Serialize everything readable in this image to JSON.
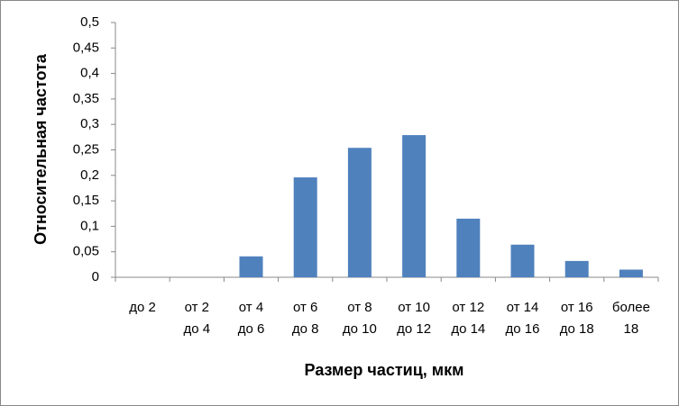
{
  "chart_data": {
    "type": "bar",
    "x_label": "Размер частиц, мкм",
    "y_label": "Относительная частота",
    "categories": [
      [
        "до 2"
      ],
      [
        "от 2",
        "до 4"
      ],
      [
        "от 4",
        "до 6"
      ],
      [
        "от 6",
        "до 8"
      ],
      [
        "от 8",
        "до 10"
      ],
      [
        "от 10",
        "до 12"
      ],
      [
        "от 12",
        "до 14"
      ],
      [
        "от 14",
        "до 16"
      ],
      [
        "от 16",
        "до 18"
      ],
      [
        "более",
        "18"
      ]
    ],
    "values": [
      0,
      0,
      0.041,
      0.196,
      0.254,
      0.279,
      0.115,
      0.064,
      0.032,
      0.015
    ],
    "color": "#4f81bd",
    "ylim": [
      0,
      0.5
    ],
    "yticks": [
      0,
      {
        "value": 0.05,
        "label": "0,05"
      },
      {
        "value": 0.1,
        "label": "0,1"
      },
      {
        "value": 0.15,
        "label": "0,15"
      },
      {
        "value": 0.2,
        "label": "0,2"
      },
      {
        "value": 0.25,
        "label": "0,25"
      },
      {
        "value": 0.3,
        "label": "0,3"
      },
      {
        "value": 0.35,
        "label": "0,35"
      },
      {
        "value": 0.4,
        "label": "0,4"
      },
      {
        "value": 0.45,
        "label": "0,45"
      },
      {
        "value": 0.5,
        "label": "0,5"
      }
    ],
    "grid": false
  }
}
